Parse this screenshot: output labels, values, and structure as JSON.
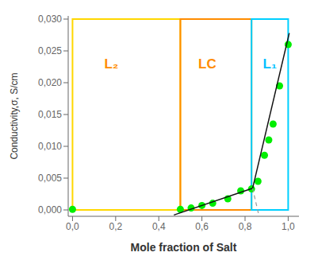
{
  "chart_data": {
    "type": "scatter",
    "title": "",
    "xlabel": "Mole fraction of Salt",
    "ylabel": "Conductivity,σ, S/cm",
    "xlim": [
      -0.02,
      1.05
    ],
    "ylim": [
      -0.001,
      0.0305
    ],
    "xticks": [
      {
        "value": 0.0,
        "label": "0,0"
      },
      {
        "value": 0.2,
        "label": "0,2"
      },
      {
        "value": 0.4,
        "label": "0,4"
      },
      {
        "value": 0.6,
        "label": "0,6"
      },
      {
        "value": 0.8,
        "label": "0,8"
      },
      {
        "value": 1.0,
        "label": "1,0"
      }
    ],
    "yticks": [
      {
        "value": 0.0,
        "label": "0,000"
      },
      {
        "value": 0.005,
        "label": "0,005"
      },
      {
        "value": 0.01,
        "label": "0,010"
      },
      {
        "value": 0.015,
        "label": "0,015"
      },
      {
        "value": 0.02,
        "label": "0,020"
      },
      {
        "value": 0.025,
        "label": "0,025"
      },
      {
        "value": 0.03,
        "label": "0,030"
      }
    ],
    "grid": false,
    "series": [
      {
        "type": "scatter",
        "marker": "circle",
        "color": "#00ee00",
        "x": [
          0.0,
          0.5,
          0.55,
          0.6,
          0.65,
          0.72,
          0.78,
          0.83,
          0.86,
          0.89,
          0.91,
          0.93,
          0.96,
          1.0
        ],
        "values": [
          0.0001,
          0.0001,
          0.0003,
          0.0007,
          0.00105,
          0.00175,
          0.003,
          0.0033,
          0.0045,
          0.0086,
          0.011,
          0.0135,
          0.0195,
          0.026
        ]
      },
      {
        "type": "line",
        "line_style": "solid",
        "color": "#111111",
        "x": [
          0.47,
          0.835
        ],
        "values": [
          -0.0008,
          0.0034
        ]
      },
      {
        "type": "line",
        "line_style": "solid",
        "color": "#111111",
        "x": [
          0.835,
          1.005
        ],
        "values": [
          0.0034,
          0.0278
        ]
      },
      {
        "type": "line",
        "line_style": "dashed",
        "color": "#999999",
        "x": [
          0.835,
          0.865
        ],
        "values": [
          0.0034,
          -0.001
        ]
      }
    ],
    "regions": [
      {
        "x": 0.0,
        "width": 0.5,
        "bottom": 0.0,
        "top": 0.03,
        "color": "#FFD700"
      },
      {
        "x": 0.5,
        "width": 0.33,
        "bottom": 0.0,
        "top": 0.03,
        "color": "#FF8C00"
      },
      {
        "x": 0.83,
        "width": 0.17,
        "bottom": 0.0,
        "top": 0.03,
        "color": "#00CFFF"
      }
    ],
    "annotations": [
      {
        "text": "L₂",
        "x": 0.18,
        "y": 0.023,
        "color": "#FF8C00"
      },
      {
        "text": "LC",
        "x": 0.625,
        "y": 0.023,
        "color": "#FF8C00"
      },
      {
        "text": "L₁",
        "x": 0.915,
        "y": 0.023,
        "color": "#00BFFF"
      }
    ]
  }
}
